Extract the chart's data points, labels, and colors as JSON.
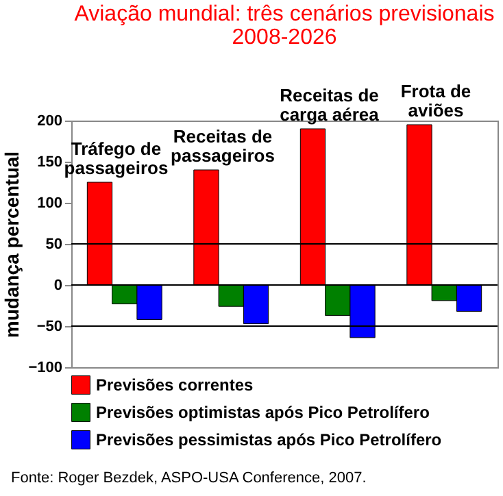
{
  "chart_data": {
    "type": "bar",
    "title": "Aviação mundial: três cenários previsionais",
    "subtitle": "2008-2026",
    "ylabel": "mudança percentual",
    "categories": [
      "Tráfego de passageiros",
      "Receitas de passageiros",
      "Receitas de carga aérea",
      "Frota de aviões"
    ],
    "series": [
      {
        "name": "Previsões correntes",
        "color": "#ff0000",
        "values": [
          125,
          140,
          190,
          195
        ]
      },
      {
        "name": "Previsões optimistas após Pico Petrolífero",
        "color": "#008000",
        "values": [
          -23,
          -26,
          -37,
          -19
        ]
      },
      {
        "name": "Previsões pessimistas após Pico Petrolífero",
        "color": "#0000ff",
        "values": [
          -42,
          -47,
          -64,
          -32
        ]
      }
    ],
    "ylim": [
      -100,
      200
    ],
    "yticks": [
      -100,
      -50,
      0,
      50,
      100,
      150,
      200
    ],
    "grid": false,
    "tick_labels": "y",
    "legend": "bottom",
    "ref_lines": [
      {
        "axis": "y",
        "value": 50,
        "color": "#000000"
      },
      {
        "axis": "y",
        "value": 0,
        "color": "#000000"
      },
      {
        "axis": "y",
        "value": -50,
        "color": "#000000"
      }
    ],
    "annotations": [
      "Fonte: Roger Bezdek, ASPO-USA Conference, 2007."
    ]
  }
}
